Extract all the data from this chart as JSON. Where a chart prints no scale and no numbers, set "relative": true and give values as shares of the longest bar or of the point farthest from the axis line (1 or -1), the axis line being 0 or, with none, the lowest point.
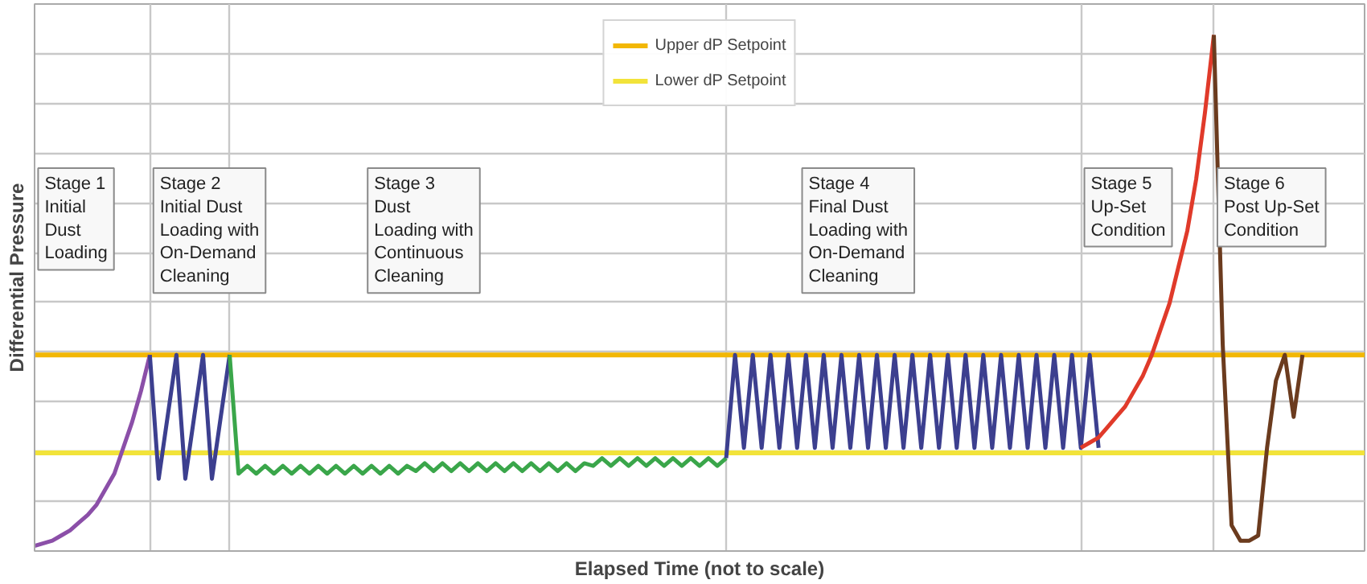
{
  "chart_data": {
    "type": "line",
    "relative": true,
    "grid": true,
    "legend": "top",
    "xlabel": "Elapsed Time (not to scale)",
    "ylabel": "Differential Pressure",
    "categories": [
      null,
      null,
      null,
      null,
      null,
      null,
      null,
      null,
      null,
      null,
      null,
      null,
      null,
      null,
      null,
      null,
      null,
      null,
      null,
      null,
      null,
      null,
      null,
      null,
      null,
      null,
      null,
      null,
      null,
      null,
      null,
      null,
      null,
      null,
      null,
      null,
      null,
      null,
      null,
      null,
      null,
      null,
      null,
      null,
      null,
      null,
      null,
      null,
      null,
      null,
      null,
      null,
      null,
      null,
      null,
      null,
      null,
      null,
      null,
      null,
      null,
      null,
      null,
      null,
      null,
      null,
      null,
      null,
      null,
      null,
      null,
      null,
      null,
      null,
      null,
      null,
      null,
      null,
      null,
      null,
      null,
      null,
      null,
      null,
      null,
      null,
      null,
      null,
      null,
      null,
      null,
      null,
      null,
      null,
      null,
      null,
      null,
      null,
      null,
      null,
      null,
      null,
      null,
      null,
      null,
      null,
      null,
      null,
      null,
      null,
      null,
      null,
      null,
      null,
      null,
      null,
      null,
      null,
      null,
      null,
      null,
      null,
      null,
      null,
      null,
      null,
      null,
      null,
      null,
      null,
      null,
      null,
      null,
      null,
      null,
      null,
      null,
      null,
      null,
      null,
      null,
      null,
      null,
      null,
      null,
      null,
      null,
      null,
      null,
      null,
      null
    ],
    "series": [
      {
        "color": "#8b4fa8",
        "values": [
          0.01,
          0.015,
          0.02,
          0.03,
          0.04,
          0.055,
          0.07,
          0.09,
          0.12,
          0.15,
          0.2,
          0.25,
          0.31,
          0.38,
          null,
          null,
          null,
          null,
          null,
          null,
          null,
          null,
          null,
          null,
          null,
          null,
          null,
          null,
          null,
          null,
          null,
          null,
          null,
          null,
          null,
          null,
          null,
          null,
          null,
          null,
          null,
          null,
          null,
          null,
          null,
          null,
          null,
          null,
          null,
          null,
          null,
          null,
          null,
          null,
          null,
          null,
          null,
          null,
          null,
          null,
          null,
          null,
          null,
          null,
          null,
          null,
          null,
          null,
          null,
          null,
          null,
          null,
          null,
          null,
          null,
          null,
          null,
          null,
          null,
          null,
          null,
          null,
          null,
          null,
          null,
          null,
          null,
          null,
          null,
          null,
          null,
          null,
          null,
          null,
          null,
          null,
          null,
          null,
          null,
          null,
          null,
          null,
          null,
          null,
          null,
          null,
          null,
          null,
          null,
          null,
          null,
          null,
          null,
          null,
          null,
          null,
          null,
          null,
          null,
          null,
          null,
          null,
          null,
          null,
          null,
          null,
          null,
          null,
          null,
          null,
          null,
          null,
          null,
          null,
          null,
          null,
          null,
          null,
          null,
          null,
          null,
          null,
          null,
          null,
          null,
          null,
          null,
          null,
          null,
          null,
          null
        ]
      },
      {
        "color": "#3c3f8f",
        "values": [
          null,
          null,
          null,
          null,
          null,
          null,
          null,
          null,
          null,
          null,
          null,
          null,
          null,
          0.38,
          0.14,
          0.26,
          0.38,
          0.14,
          0.26,
          0.38,
          0.14,
          0.26,
          0.38,
          null,
          null,
          null,
          null,
          null,
          null,
          null,
          null,
          null,
          null,
          null,
          null,
          null,
          null,
          null,
          null,
          null,
          null,
          null,
          null,
          null,
          null,
          null,
          null,
          null,
          null,
          null,
          null,
          null,
          null,
          null,
          null,
          null,
          null,
          null,
          null,
          null,
          null,
          null,
          null,
          null,
          null,
          null,
          null,
          null,
          null,
          null,
          null,
          null,
          null,
          null,
          null,
          null,
          null,
          null,
          null,
          null,
          null,
          null,
          null,
          null,
          null,
          null,
          null,
          null,
          null,
          null,
          null,
          null,
          null,
          null,
          null,
          null,
          null,
          null,
          null,
          null,
          null,
          null,
          null,
          null,
          null,
          null,
          null,
          null,
          null,
          null,
          null,
          null,
          null,
          null,
          null,
          null,
          null,
          null,
          null,
          null,
          null,
          null,
          null,
          null,
          null,
          null,
          null,
          null,
          null,
          null,
          null,
          null,
          null,
          null,
          null,
          null,
          null,
          null,
          null,
          null,
          null,
          null,
          null,
          null,
          null,
          null,
          null,
          null,
          null,
          null,
          null
        ]
      },
      {
        "color": "#3aa64a",
        "values": [
          null,
          null,
          null,
          null,
          null,
          null,
          null,
          null,
          null,
          null,
          null,
          null,
          null,
          null,
          null,
          null,
          null,
          null,
          null,
          null,
          null,
          null,
          0.38,
          0.15,
          0.165,
          0.15,
          0.165,
          0.15,
          0.165,
          0.15,
          0.165,
          0.15,
          0.165,
          0.15,
          0.165,
          0.15,
          0.165,
          0.15,
          0.165,
          0.15,
          0.165,
          0.15,
          0.165,
          0.155,
          0.17,
          0.155,
          0.17,
          0.155,
          0.17,
          0.155,
          0.17,
          0.155,
          0.17,
          0.155,
          0.17,
          0.155,
          0.17,
          0.155,
          0.17,
          0.155,
          0.17,
          0.155,
          0.17,
          0.165,
          0.18,
          0.165,
          0.18,
          0.165,
          0.18,
          0.165,
          0.18,
          0.165,
          0.18,
          0.165,
          0.18,
          0.165,
          0.18,
          0.165,
          0.18,
          null,
          null,
          null,
          null,
          null,
          null,
          null,
          null,
          null,
          null,
          null,
          null,
          null,
          null,
          null,
          null,
          null,
          null,
          null,
          null,
          null,
          null,
          null,
          null,
          null,
          null,
          null,
          null,
          null,
          null,
          null,
          null,
          null,
          null,
          null,
          null,
          null,
          null,
          null,
          null,
          null,
          null,
          null,
          null,
          null,
          null,
          null,
          null,
          null,
          null,
          null,
          null,
          null,
          null,
          null,
          null,
          null,
          null,
          null,
          null,
          null,
          null,
          null,
          null,
          null,
          null,
          null,
          null,
          null,
          null,
          null,
          null
        ]
      },
      {
        "color": "#3c3f8f",
        "values": [
          null,
          null,
          null,
          null,
          null,
          null,
          null,
          null,
          null,
          null,
          null,
          null,
          null,
          null,
          null,
          null,
          null,
          null,
          null,
          null,
          null,
          null,
          null,
          null,
          null,
          null,
          null,
          null,
          null,
          null,
          null,
          null,
          null,
          null,
          null,
          null,
          null,
          null,
          null,
          null,
          null,
          null,
          null,
          null,
          null,
          null,
          null,
          null,
          null,
          null,
          null,
          null,
          null,
          null,
          null,
          null,
          null,
          null,
          null,
          null,
          null,
          null,
          null,
          null,
          null,
          null,
          null,
          null,
          null,
          null,
          null,
          null,
          null,
          null,
          null,
          null,
          null,
          null,
          0.18,
          0.38,
          0.2,
          0.38,
          0.2,
          0.38,
          0.2,
          0.38,
          0.2,
          0.38,
          0.2,
          0.38,
          0.2,
          0.38,
          0.2,
          0.38,
          0.2,
          0.38,
          0.2,
          0.38,
          0.2,
          0.38,
          0.2,
          0.38,
          0.2,
          0.38,
          0.2,
          0.38,
          0.2,
          0.38,
          0.2,
          0.38,
          0.2,
          0.38,
          0.2,
          0.38,
          0.2,
          0.38,
          0.2,
          0.38,
          0.2,
          0.38,
          0.2,
          null,
          null,
          null,
          null,
          null,
          null,
          null,
          null,
          null,
          null,
          null,
          null,
          null,
          null,
          null,
          null,
          null,
          null,
          null,
          null,
          null,
          null,
          null,
          null,
          null,
          null,
          null,
          null,
          null,
          null
        ]
      },
      {
        "color": "#e03a2a",
        "values": [
          null,
          null,
          null,
          null,
          null,
          null,
          null,
          null,
          null,
          null,
          null,
          null,
          null,
          null,
          null,
          null,
          null,
          null,
          null,
          null,
          null,
          null,
          null,
          null,
          null,
          null,
          null,
          null,
          null,
          null,
          null,
          null,
          null,
          null,
          null,
          null,
          null,
          null,
          null,
          null,
          null,
          null,
          null,
          null,
          null,
          null,
          null,
          null,
          null,
          null,
          null,
          null,
          null,
          null,
          null,
          null,
          null,
          null,
          null,
          null,
          null,
          null,
          null,
          null,
          null,
          null,
          null,
          null,
          null,
          null,
          null,
          null,
          null,
          null,
          null,
          null,
          null,
          null,
          null,
          null,
          null,
          null,
          null,
          null,
          null,
          null,
          null,
          null,
          null,
          null,
          null,
          null,
          null,
          null,
          null,
          null,
          null,
          null,
          null,
          null,
          null,
          null,
          null,
          null,
          null,
          null,
          null,
          null,
          null,
          null,
          null,
          null,
          null,
          null,
          null,
          null,
          null,
          null,
          0.2,
          0.21,
          0.22,
          0.24,
          0.26,
          0.28,
          0.31,
          0.34,
          0.38,
          0.43,
          0.48,
          0.55,
          0.62,
          0.72,
          0.85,
          1.0,
          null,
          null,
          null,
          null,
          null,
          null,
          null,
          null,
          null,
          null,
          null,
          null,
          null,
          null,
          null,
          null,
          null
        ]
      },
      {
        "color": "#6b3b1e",
        "values": [
          null,
          null,
          null,
          null,
          null,
          null,
          null,
          null,
          null,
          null,
          null,
          null,
          null,
          null,
          null,
          null,
          null,
          null,
          null,
          null,
          null,
          null,
          null,
          null,
          null,
          null,
          null,
          null,
          null,
          null,
          null,
          null,
          null,
          null,
          null,
          null,
          null,
          null,
          null,
          null,
          null,
          null,
          null,
          null,
          null,
          null,
          null,
          null,
          null,
          null,
          null,
          null,
          null,
          null,
          null,
          null,
          null,
          null,
          null,
          null,
          null,
          null,
          null,
          null,
          null,
          null,
          null,
          null,
          null,
          null,
          null,
          null,
          null,
          null,
          null,
          null,
          null,
          null,
          null,
          null,
          null,
          null,
          null,
          null,
          null,
          null,
          null,
          null,
          null,
          null,
          null,
          null,
          null,
          null,
          null,
          null,
          null,
          null,
          null,
          null,
          null,
          null,
          null,
          null,
          null,
          null,
          null,
          null,
          null,
          null,
          null,
          null,
          null,
          null,
          null,
          null,
          null,
          null,
          null,
          null,
          null,
          null,
          null,
          null,
          null,
          null,
          null,
          null,
          null,
          null,
          null,
          null,
          null,
          1.0,
          0.4,
          0.05,
          0.02,
          0.02,
          0.03,
          0.2,
          0.33,
          0.38,
          0.26,
          0.38,
          null,
          null,
          null,
          null,
          null,
          null,
          null
        ]
      }
    ],
    "ref_lines": [
      {
        "axis": "y",
        "value": 0.38,
        "label": "Upper dP Setpoint",
        "color": "#f2b705"
      },
      {
        "axis": "y",
        "value": 0.19,
        "label": "Lower dP Setpoint",
        "color": "#f2e33a"
      }
    ],
    "annotations": [
      "Stage 1\nInitial\nDust\nLoading",
      "Stage 2\nInitial Dust\nLoading with\nOn-Demand\nCleaning",
      "Stage 3\nDust\nLoading with\nContinuous\nCleaning",
      "Stage 4\nFinal Dust\nLoading with\nOn-Demand\nCleaning",
      "Stage 5\nUp-Set\nCondition",
      "Stage 6\nPost Up-Set\nCondition"
    ]
  }
}
